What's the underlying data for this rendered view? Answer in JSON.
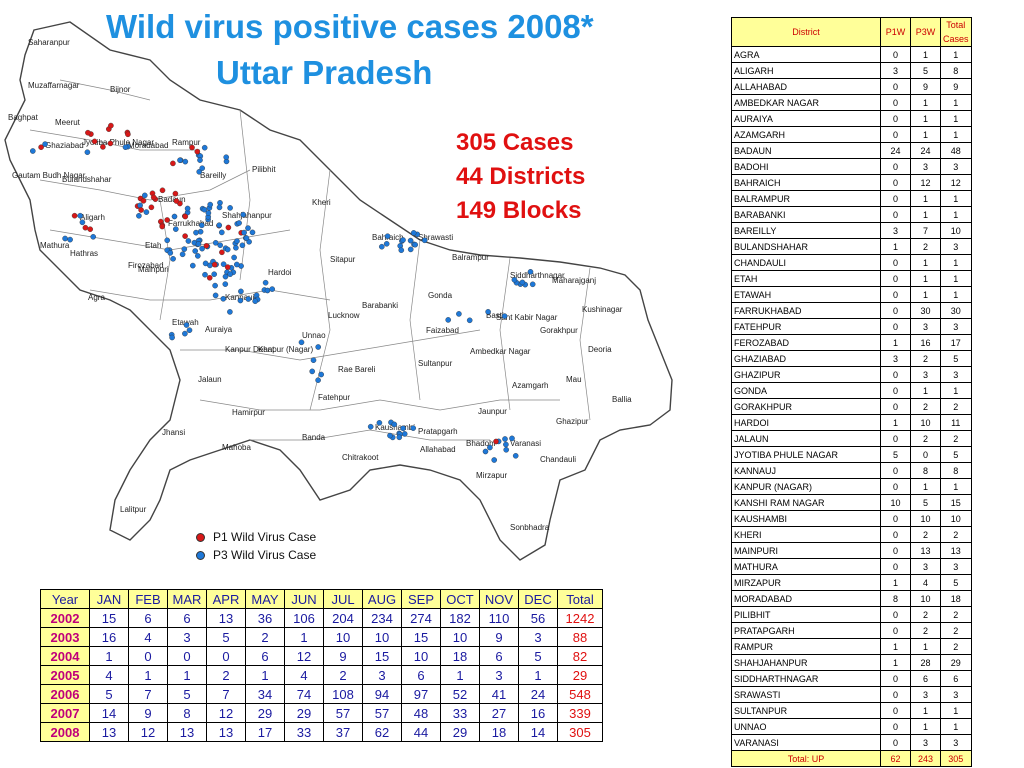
{
  "title": {
    "line1": "Wild virus positive cases 2008*",
    "line2": "Uttar Pradesh"
  },
  "summary": {
    "cases": "305 Cases",
    "districts": "44 Districts",
    "blocks": "149 Blocks"
  },
  "legend": {
    "p1": "P1 Wild Virus Case",
    "p3": "P3 Wild Virus Case",
    "p1_color": "#d81818",
    "p3_color": "#1e78d8"
  },
  "map_labels": [
    "Saharanpur",
    "Muzaffarnagar",
    "Bijnor",
    "Baghpat",
    "Meerut",
    "Ghaziabad",
    "Jyotiba Phule Nagar",
    "Moradabad",
    "Rampur",
    "Gautam Budh Nagar",
    "Bulandshahar",
    "Badaun",
    "Bareilly",
    "Pilibhit",
    "Aligarh",
    "Shahjahanpur",
    "Kheri",
    "Etah",
    "Mathura",
    "Hathras",
    "Mainpuri",
    "Agra",
    "Farrukhabad",
    "Hardoi",
    "Sitapur",
    "Firozabad",
    "Kannauj",
    "Etawah",
    "Auraiya",
    "Kanpur Dehat",
    "Kanpur (Nagar)",
    "Unnao",
    "Lucknow",
    "Barabanki",
    "Rae Bareli",
    "Jalaun",
    "Hamirpur",
    "Fatehpur",
    "Banda",
    "Jhansi",
    "Mahoba",
    "Chitrakoot",
    "Lalitpur",
    "Bahraich",
    "Shrawasti",
    "Balrampur",
    "Siddharthnagar",
    "Maharajganj",
    "Gonda",
    "Basti",
    "Sant Kabir Nagar",
    "Gorakhpur",
    "Kushinagar",
    "Faizabad",
    "Ambedkar Nagar",
    "Deoria",
    "Sultanpur",
    "Azamgarh",
    "Mau",
    "Ballia",
    "Pratapgarh",
    "Kaushambi",
    "Allahabad",
    "Jaunpur",
    "Ghazipur",
    "Varanasi",
    "Bhadohi",
    "Chandauli",
    "Mirzapur",
    "Sonbhadra"
  ],
  "district_table": {
    "headers": [
      "District",
      "P1W",
      "P3W",
      "Total Cases"
    ],
    "rows": [
      [
        "AGRA",
        "0",
        "1",
        "1"
      ],
      [
        "ALIGARH",
        "3",
        "5",
        "8"
      ],
      [
        "ALLAHABAD",
        "0",
        "9",
        "9"
      ],
      [
        "AMBEDKAR NAGAR",
        "0",
        "1",
        "1"
      ],
      [
        "AURAIYA",
        "0",
        "1",
        "1"
      ],
      [
        "AZAMGARH",
        "0",
        "1",
        "1"
      ],
      [
        "BADAUN",
        "24",
        "24",
        "48"
      ],
      [
        "BADOHI",
        "0",
        "3",
        "3"
      ],
      [
        "BAHRAICH",
        "0",
        "12",
        "12"
      ],
      [
        "BALRAMPUR",
        "0",
        "1",
        "1"
      ],
      [
        "BARABANKI",
        "0",
        "1",
        "1"
      ],
      [
        "BAREILLY",
        "3",
        "7",
        "10"
      ],
      [
        "BULANDSHAHAR",
        "1",
        "2",
        "3"
      ],
      [
        "CHANDAULI",
        "0",
        "1",
        "1"
      ],
      [
        "ETAH",
        "0",
        "1",
        "1"
      ],
      [
        "ETAWAH",
        "0",
        "1",
        "1"
      ],
      [
        "FARRUKHABAD",
        "0",
        "30",
        "30"
      ],
      [
        "FATEHPUR",
        "0",
        "3",
        "3"
      ],
      [
        "FEROZABAD",
        "1",
        "16",
        "17"
      ],
      [
        "GHAZIABAD",
        "3",
        "2",
        "5"
      ],
      [
        "GHAZIPUR",
        "0",
        "3",
        "3"
      ],
      [
        "GONDA",
        "0",
        "1",
        "1"
      ],
      [
        "GORAKHPUR",
        "0",
        "2",
        "2"
      ],
      [
        "HARDOI",
        "1",
        "10",
        "11"
      ],
      [
        "JALAUN",
        "0",
        "2",
        "2"
      ],
      [
        "JYOTIBA PHULE NAGAR",
        "5",
        "0",
        "5"
      ],
      [
        "KANNAUJ",
        "0",
        "8",
        "8"
      ],
      [
        "KANPUR (NAGAR)",
        "0",
        "1",
        "1"
      ],
      [
        "KANSHI RAM NAGAR",
        "10",
        "5",
        "15"
      ],
      [
        "KAUSHAMBI",
        "0",
        "10",
        "10"
      ],
      [
        "KHERI",
        "0",
        "2",
        "2"
      ],
      [
        "MAINPURI",
        "0",
        "13",
        "13"
      ],
      [
        "MATHURA",
        "0",
        "3",
        "3"
      ],
      [
        "MIRZAPUR",
        "1",
        "4",
        "5"
      ],
      [
        "MORADABAD",
        "8",
        "10",
        "18"
      ],
      [
        "PILIBHIT",
        "0",
        "2",
        "2"
      ],
      [
        "PRATAPGARH",
        "0",
        "2",
        "2"
      ],
      [
        "RAMPUR",
        "1",
        "1",
        "2"
      ],
      [
        "SHAHJAHANPUR",
        "1",
        "28",
        "29"
      ],
      [
        "SIDDHARTHNAGAR",
        "0",
        "6",
        "6"
      ],
      [
        "SRAWASTI",
        "0",
        "3",
        "3"
      ],
      [
        "SULTANPUR",
        "0",
        "1",
        "1"
      ],
      [
        "UNNAO",
        "0",
        "1",
        "1"
      ],
      [
        "VARANASI",
        "0",
        "3",
        "3"
      ]
    ],
    "total": [
      "Total: UP",
      "62",
      "243",
      "305"
    ]
  },
  "month_table": {
    "headers": [
      "Year",
      "JAN",
      "FEB",
      "MAR",
      "APR",
      "MAY",
      "JUN",
      "JUL",
      "AUG",
      "SEP",
      "OCT",
      "NOV",
      "DEC",
      "Total"
    ],
    "rows": [
      {
        "year": "2002",
        "values": [
          "15",
          "6",
          "6",
          "13",
          "36",
          "106",
          "204",
          "234",
          "274",
          "182",
          "110",
          "56"
        ],
        "total": "1242"
      },
      {
        "year": "2003",
        "values": [
          "16",
          "4",
          "3",
          "5",
          "2",
          "1",
          "10",
          "10",
          "15",
          "10",
          "9",
          "3"
        ],
        "total": "88"
      },
      {
        "year": "2004",
        "values": [
          "1",
          "0",
          "0",
          "0",
          "6",
          "12",
          "9",
          "15",
          "10",
          "18",
          "6",
          "5"
        ],
        "total": "82"
      },
      {
        "year": "2005",
        "values": [
          "4",
          "1",
          "1",
          "2",
          "1",
          "4",
          "2",
          "3",
          "6",
          "1",
          "3",
          "1"
        ],
        "total": "29"
      },
      {
        "year": "2006",
        "values": [
          "5",
          "7",
          "5",
          "7",
          "34",
          "74",
          "108",
          "94",
          "97",
          "52",
          "41",
          "24"
        ],
        "total": "548"
      },
      {
        "year": "2007",
        "values": [
          "14",
          "9",
          "8",
          "12",
          "29",
          "29",
          "57",
          "57",
          "48",
          "33",
          "27",
          "16"
        ],
        "total": "339"
      },
      {
        "year": "2008",
        "values": [
          "13",
          "12",
          "13",
          "13",
          "17",
          "33",
          "37",
          "62",
          "44",
          "29",
          "18",
          "14"
        ],
        "total": "305"
      }
    ]
  }
}
